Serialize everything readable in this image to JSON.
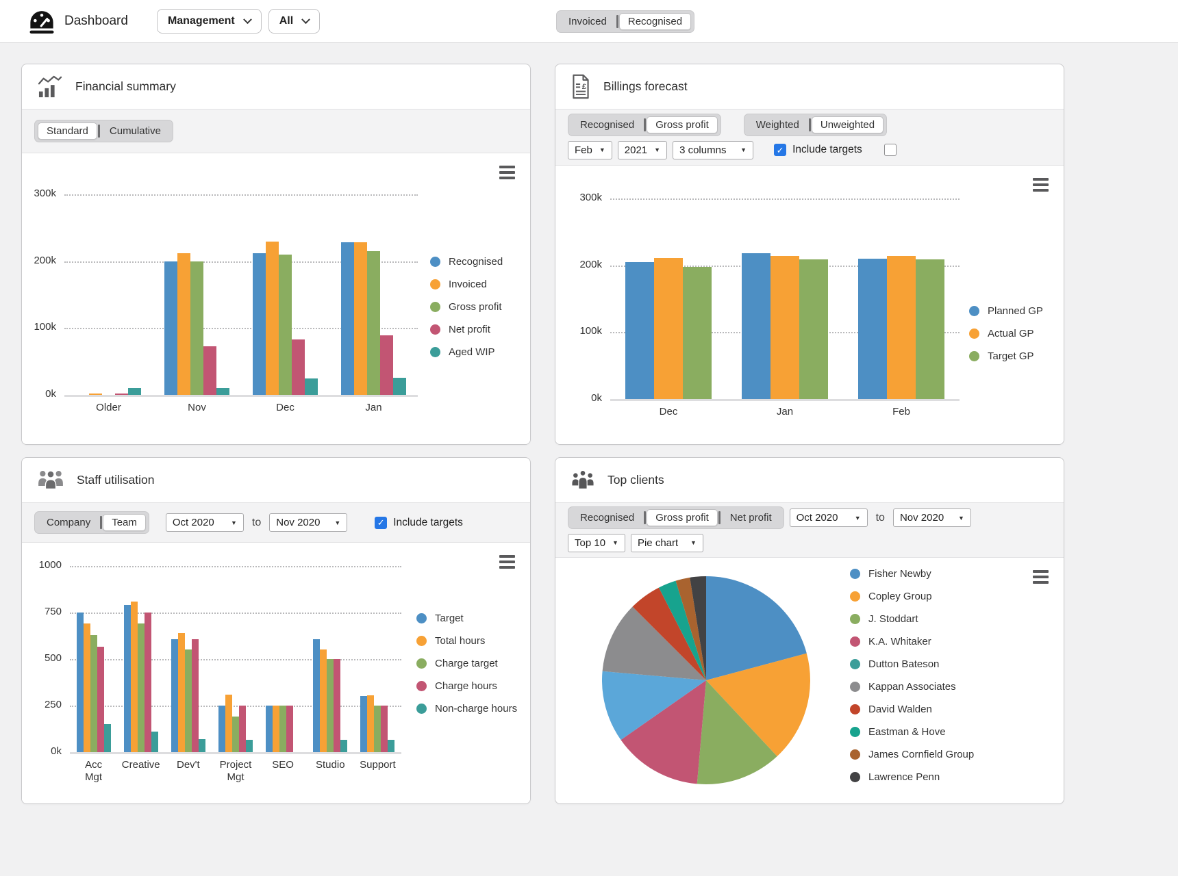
{
  "header": {
    "app_title": "Dashboard",
    "view_select": "Management",
    "filter_select": "All",
    "mode_toggle": {
      "options": [
        "Invoiced",
        "Recognised"
      ],
      "selected": "Recognised"
    }
  },
  "panels": {
    "financial": {
      "title": "Financial summary",
      "view_toggle": {
        "options": [
          "Standard",
          "Cumulative"
        ],
        "selected": "Standard"
      }
    },
    "billings": {
      "title": "Billings forecast",
      "metric_toggle": {
        "options": [
          "Recognised",
          "Gross profit"
        ],
        "selected": "Gross profit"
      },
      "weight_toggle": {
        "options": [
          "Weighted",
          "Unweighted"
        ],
        "selected": "Unweighted"
      },
      "month_select": "Feb",
      "year_select": "2021",
      "columns_select": "3 columns",
      "include_targets": {
        "label": "Include targets",
        "checked": true
      },
      "extra_checkbox": {
        "label": "",
        "checked": false
      }
    },
    "staff": {
      "title": "Staff utilisation",
      "scope_toggle": {
        "options": [
          "Company",
          "Team"
        ],
        "selected": "Team"
      },
      "from_select": "Oct 2020",
      "range_separator": "to",
      "to_select": "Nov 2020",
      "include_targets": {
        "label": "Include targets",
        "checked": true
      }
    },
    "clients": {
      "title": "Top clients",
      "metric_toggle": {
        "options": [
          "Recognised",
          "Gross profit",
          "Net profit"
        ],
        "selected": "Gross profit"
      },
      "from_select": "Oct 2020",
      "range_separator": "to",
      "to_select": "Nov 2020",
      "top_select": "Top 10",
      "chart_type_select": "Pie chart"
    }
  },
  "chart_data": [
    {
      "id": "financial_summary",
      "type": "bar",
      "title": "Financial summary",
      "categories": [
        "Older",
        "Nov",
        "Dec",
        "Jan"
      ],
      "series": [
        {
          "name": "Recognised",
          "color": "#4d8fc4",
          "values": [
            0.5,
            200,
            212,
            228
          ]
        },
        {
          "name": "Invoiced",
          "color": "#f7a135",
          "values": [
            2,
            212,
            229,
            228
          ]
        },
        {
          "name": "Gross profit",
          "color": "#8aad60",
          "values": [
            0.5,
            200,
            210,
            215
          ]
        },
        {
          "name": "Net profit",
          "color": "#c25573",
          "values": [
            2,
            73,
            83,
            89
          ]
        },
        {
          "name": "Aged WIP",
          "color": "#3b9d99",
          "values": [
            10,
            10,
            25,
            26
          ]
        }
      ],
      "ymax": 300,
      "yticks": [
        {
          "value": 300,
          "label": "300k"
        },
        {
          "value": 200,
          "label": "200k"
        },
        {
          "value": 100,
          "label": "100k"
        },
        {
          "value": 0,
          "label": "0k"
        }
      ],
      "ylim": [
        0,
        300
      ],
      "grid": "dotted",
      "legend_position": "right"
    },
    {
      "id": "billings_forecast",
      "type": "bar",
      "title": "Billings forecast",
      "categories": [
        "Dec",
        "Jan",
        "Feb"
      ],
      "series": [
        {
          "name": "Planned GP",
          "color": "#4d8fc4",
          "values": [
            205,
            218,
            210
          ]
        },
        {
          "name": "Actual GP",
          "color": "#f7a135",
          "values": [
            211,
            214,
            214
          ]
        },
        {
          "name": "Target GP",
          "color": "#8aad60",
          "values": [
            198,
            209,
            209
          ]
        }
      ],
      "ymax": 300,
      "yticks": [
        {
          "value": 300,
          "label": "300k"
        },
        {
          "value": 200,
          "label": "200k"
        },
        {
          "value": 100,
          "label": "100k"
        },
        {
          "value": 0,
          "label": "0k"
        }
      ],
      "ylim": [
        0,
        300
      ],
      "grid": "dotted",
      "legend_position": "right"
    },
    {
      "id": "staff_utilisation",
      "type": "bar",
      "title": "Staff utilisation",
      "categories": [
        "Acc\nMgt",
        "Creative",
        "Dev't",
        "Project\nMgt",
        "SEO",
        "Studio",
        "Support"
      ],
      "series": [
        {
          "name": "Target",
          "color": "#4d8fc4",
          "values": [
            750,
            790,
            605,
            250,
            250,
            605,
            300
          ]
        },
        {
          "name": "Total hours",
          "color": "#f7a135",
          "values": [
            690,
            810,
            640,
            310,
            250,
            550,
            305
          ]
        },
        {
          "name": "Charge target",
          "color": "#8aad60",
          "values": [
            630,
            690,
            550,
            190,
            250,
            500,
            250
          ]
        },
        {
          "name": "Charge hours",
          "color": "#c25573",
          "values": [
            565,
            750,
            605,
            250,
            250,
            500,
            250
          ]
        },
        {
          "name": "Non-charge hours",
          "color": "#3b9d99",
          "values": [
            150,
            110,
            70,
            65,
            0,
            65,
            65
          ]
        }
      ],
      "ymax": 1000,
      "yticks": [
        {
          "value": 1000,
          "label": "1000"
        },
        {
          "value": 750,
          "label": "750"
        },
        {
          "value": 500,
          "label": "500"
        },
        {
          "value": 250,
          "label": "250"
        },
        {
          "value": 0,
          "label": "0k"
        }
      ],
      "ylim": [
        0,
        1000
      ],
      "grid": "dotted",
      "legend_position": "right"
    },
    {
      "id": "top_clients",
      "type": "pie",
      "title": "Top clients",
      "items": [
        {
          "name": "Fisher Newby",
          "color": "#4d8fc4",
          "slice_color": "#4d8fc4",
          "value": 75
        },
        {
          "name": "Copley Group",
          "color": "#f7a135",
          "slice_color": "#f7a135",
          "value": 62
        },
        {
          "name": "J. Stoddart",
          "color": "#8aad60",
          "slice_color": "#8aad60",
          "value": 48
        },
        {
          "name": "K.A. Whitaker",
          "color": "#c25573",
          "slice_color": "#c25573",
          "value": 50
        },
        {
          "name": "Dutton Bateson",
          "color": "#3b9d99",
          "slice_color": "#5ba7d9",
          "value": 40
        },
        {
          "name": "Kappan Associates",
          "color": "#8c8c8e",
          "slice_color": "#8c8c8e",
          "value": 40
        },
        {
          "name": "David Walden",
          "color": "#c2452a",
          "slice_color": "#c2452a",
          "value": 18
        },
        {
          "name": "Eastman & Hove",
          "color": "#17a38e",
          "slice_color": "#17a38e",
          "value": 10
        },
        {
          "name": "James Cornfield Group",
          "color": "#a9632f",
          "slice_color": "#a9632f",
          "value": 8
        },
        {
          "name": "Lawrence Penn",
          "color": "#424244",
          "slice_color": "#424244",
          "value": 9
        }
      ],
      "legend_position": "right"
    }
  ]
}
